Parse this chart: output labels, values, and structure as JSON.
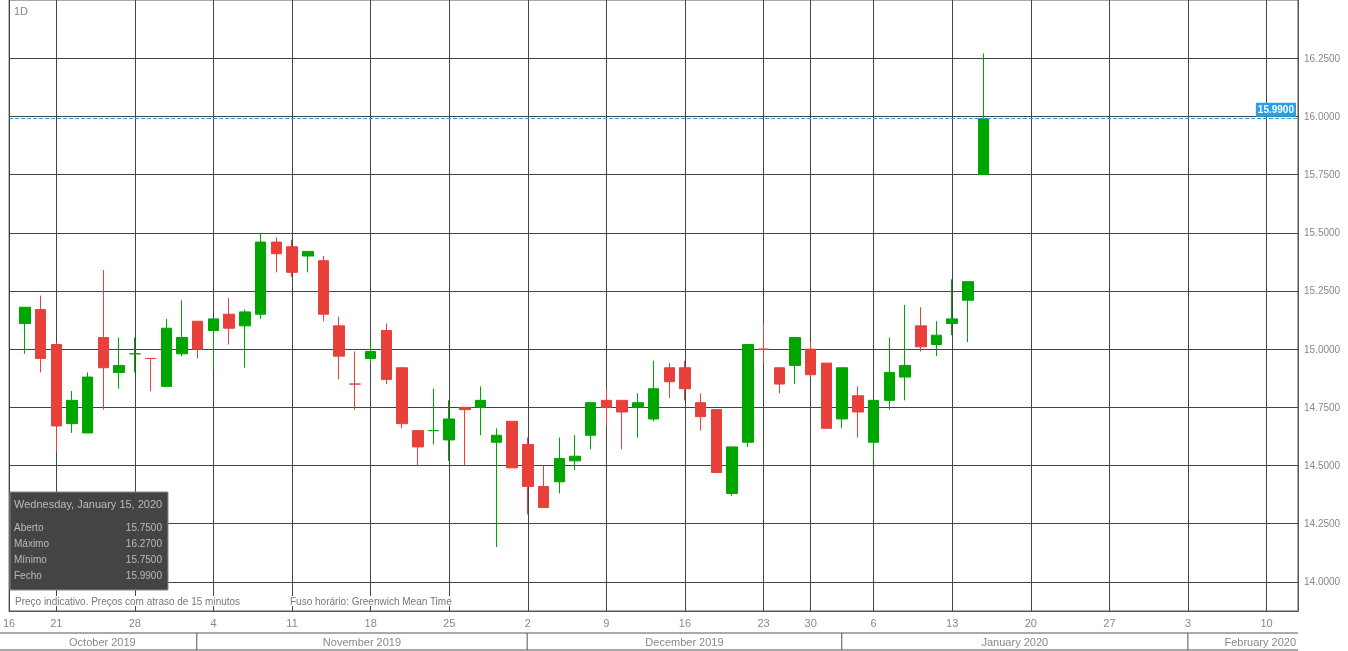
{
  "chart_data": {
    "type": "candlestick",
    "title": "1D",
    "categories": [
      "16",
      null,
      null,
      "21",
      null,
      null,
      null,
      null,
      "28",
      null,
      null,
      null,
      null,
      "4",
      null,
      null,
      null,
      null,
      "11",
      null,
      null,
      null,
      null,
      "18",
      null,
      null,
      null,
      null,
      "25",
      null,
      null,
      null,
      null,
      "2",
      null,
      null,
      null,
      null,
      "9",
      null,
      null,
      null,
      null,
      "16",
      null,
      null,
      null,
      null,
      "23",
      null,
      null,
      "30",
      null,
      null,
      null,
      "6",
      null,
      null,
      null,
      null,
      "13",
      null,
      null,
      null,
      null,
      "20",
      null,
      null,
      null,
      null,
      "27",
      null,
      null,
      null,
      null,
      "3",
      null,
      null,
      null,
      null,
      "10",
      null,
      null
    ],
    "ohlc": [
      null,
      [
        15.11,
        15.18,
        14.98,
        15.18
      ],
      [
        15.17,
        15.23,
        14.9,
        14.96
      ],
      [
        15.02,
        15.03,
        14.56,
        14.67
      ],
      [
        14.68,
        14.82,
        14.64,
        14.78
      ],
      [
        14.64,
        14.9,
        14.64,
        14.88
      ],
      [
        15.05,
        15.34,
        14.74,
        14.92
      ],
      [
        14.9,
        15.05,
        14.83,
        14.93
      ],
      [
        14.98,
        15.05,
        14.9,
        14.98
      ],
      [
        14.96,
        14.96,
        14.82,
        14.96
      ],
      [
        14.84,
        15.13,
        14.84,
        15.09
      ],
      [
        14.98,
        15.21,
        14.97,
        15.05
      ],
      [
        15.12,
        15.12,
        14.96,
        15.0
      ],
      [
        15.08,
        15.13,
        14.91,
        15.13
      ],
      [
        15.15,
        15.22,
        15.02,
        15.09
      ],
      [
        15.1,
        15.17,
        14.92,
        15.16
      ],
      [
        15.15,
        15.5,
        15.13,
        15.46
      ],
      [
        15.46,
        15.48,
        15.33,
        15.41
      ],
      [
        15.44,
        15.47,
        15.31,
        15.33
      ],
      [
        15.4,
        15.42,
        15.33,
        15.42
      ],
      [
        15.38,
        15.4,
        15.12,
        15.15
      ],
      [
        15.1,
        15.14,
        14.87,
        14.97
      ],
      [
        14.85,
        14.99,
        14.74,
        14.85
      ],
      [
        14.96,
        15.03,
        14.94,
        14.99
      ],
      [
        15.08,
        15.11,
        14.85,
        14.87
      ],
      [
        14.92,
        14.92,
        14.66,
        14.68
      ],
      [
        14.65,
        14.65,
        14.5,
        14.58
      ],
      [
        14.65,
        14.83,
        14.59,
        14.65
      ],
      [
        14.61,
        14.78,
        14.52,
        14.7
      ],
      [
        14.75,
        14.75,
        14.5,
        14.74
      ],
      [
        14.75,
        14.84,
        14.63,
        14.78
      ],
      [
        14.6,
        14.66,
        14.15,
        14.63
      ],
      [
        14.69,
        14.69,
        14.49,
        14.49
      ],
      [
        14.59,
        14.62,
        14.29,
        14.41
      ],
      [
        14.41,
        14.5,
        14.32,
        14.32
      ],
      [
        14.43,
        14.62,
        14.38,
        14.53
      ],
      [
        14.52,
        14.63,
        14.48,
        14.54
      ],
      [
        14.63,
        14.77,
        14.57,
        14.77
      ],
      [
        14.78,
        14.83,
        14.67,
        14.75
      ],
      [
        14.78,
        14.78,
        14.57,
        14.73
      ],
      [
        14.75,
        14.81,
        14.62,
        14.77
      ],
      [
        14.7,
        14.95,
        14.69,
        14.83
      ],
      [
        14.92,
        14.94,
        14.79,
        14.86
      ],
      [
        14.92,
        14.95,
        14.78,
        14.83
      ],
      [
        14.77,
        14.81,
        14.65,
        14.71
      ],
      [
        14.74,
        14.74,
        14.47,
        14.47
      ],
      [
        14.38,
        14.58,
        14.37,
        14.58
      ],
      [
        14.6,
        15.02,
        14.58,
        15.02
      ],
      [
        15.0,
        15.11,
        14.94,
        15.0
      ],
      [
        14.92,
        14.92,
        14.81,
        14.85
      ],
      [
        14.93,
        15.05,
        14.85,
        15.05
      ],
      [
        15.0,
        15.03,
        14.88,
        14.89
      ],
      [
        14.94,
        14.94,
        14.66,
        14.66
      ],
      [
        14.7,
        14.92,
        14.66,
        14.92
      ],
      [
        14.8,
        14.84,
        14.62,
        14.73
      ],
      [
        14.6,
        14.78,
        14.52,
        14.78
      ],
      [
        14.78,
        15.05,
        14.74,
        14.9
      ],
      [
        14.88,
        15.19,
        14.78,
        14.93
      ],
      [
        15.1,
        15.18,
        14.99,
        15.01
      ],
      [
        15.02,
        15.12,
        14.97,
        15.06
      ],
      [
        15.11,
        15.3,
        15.06,
        15.13
      ],
      [
        15.21,
        15.29,
        15.03,
        15.29
      ],
      [
        15.75,
        16.27,
        15.75,
        15.99
      ],
      null,
      null,
      null,
      null,
      null,
      null,
      null,
      null,
      null,
      null,
      null,
      null,
      null,
      null,
      null,
      null,
      null,
      null,
      null,
      null
    ],
    "ylim": [
      13.875,
      16.5
    ],
    "yticks": [
      {
        "value": 14,
        "label": "14.0000"
      },
      {
        "value": 14.25,
        "label": "14.2500"
      },
      {
        "value": 14.5,
        "label": "14.5000"
      },
      {
        "value": 14.75,
        "label": "14.7500"
      },
      {
        "value": 15,
        "label": "15.0000"
      },
      {
        "value": 15.25,
        "label": "15.2500"
      },
      {
        "value": 15.5,
        "label": "15.5000"
      },
      {
        "value": 15.75,
        "label": "15.7500"
      },
      {
        "value": 16,
        "label": "16.0000"
      },
      {
        "value": 16.25,
        "label": "16.2500"
      }
    ],
    "grid": true,
    "ref_lines": [
      {
        "axis": "y",
        "value": 15.99,
        "label": "15.9900",
        "color": "#2a9ee6",
        "line_style": "dashed"
      }
    ],
    "annotations": [
      "Wednesday, January 15, 2020",
      "Aberto",
      "15.7500",
      "Máximo",
      "16.2700",
      "Mínimo",
      "15.7500",
      "Fecho",
      "15.9900",
      "Preço indicativo. Preços com atraso de 15 minutos",
      "Fuso horário: Greenwich Mean Time",
      "October 2019",
      "November 2019",
      "December 2019",
      "January 2020",
      "February 2020"
    ]
  }
}
